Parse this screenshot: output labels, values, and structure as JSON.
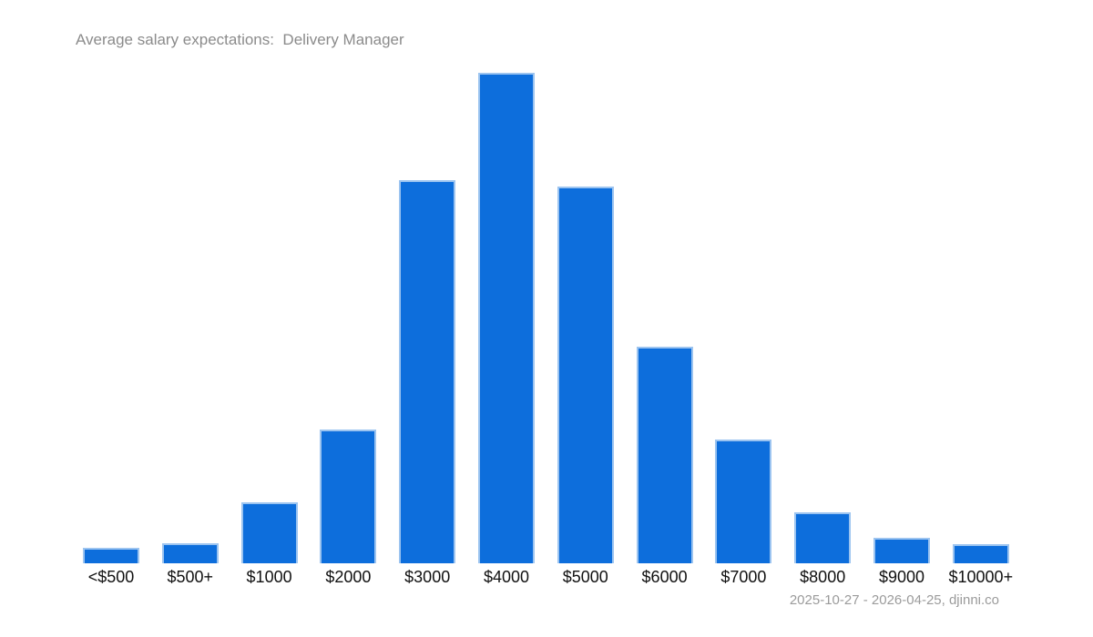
{
  "header": {
    "title": "Average salary expectations:  Delivery Manager"
  },
  "footer": {
    "caption": "2025-10-27 - 2026-04-25, djinni.co"
  },
  "colors": {
    "bar_fill": "#0d6edc",
    "bar_edge": "#9cc4f0",
    "title_text": "#8b8b8b",
    "footer_text": "#9b9b9b",
    "axis_label_text": "#111111",
    "background": "#ffffff"
  },
  "chart_data": {
    "type": "bar",
    "title": "Average salary expectations:  Delivery Manager",
    "categories": [
      "<$500",
      "$500+",
      "$1000",
      "$2000",
      "$3000",
      "$4000",
      "$5000",
      "$6000",
      "$7000",
      "$8000",
      "$9000",
      "$10000+"
    ],
    "values": [
      3.2,
      4.1,
      12.4,
      27.3,
      78.1,
      100,
      76.8,
      44.2,
      25.2,
      10.4,
      5.2,
      3.9
    ],
    "xlabel": "",
    "ylabel": "",
    "ylim": [
      0,
      100
    ],
    "y_axis_shown": false,
    "grid": false,
    "legend": false,
    "bar_color": "#0d6edc",
    "source_caption": "2025-10-27 - 2026-04-25, djinni.co"
  }
}
